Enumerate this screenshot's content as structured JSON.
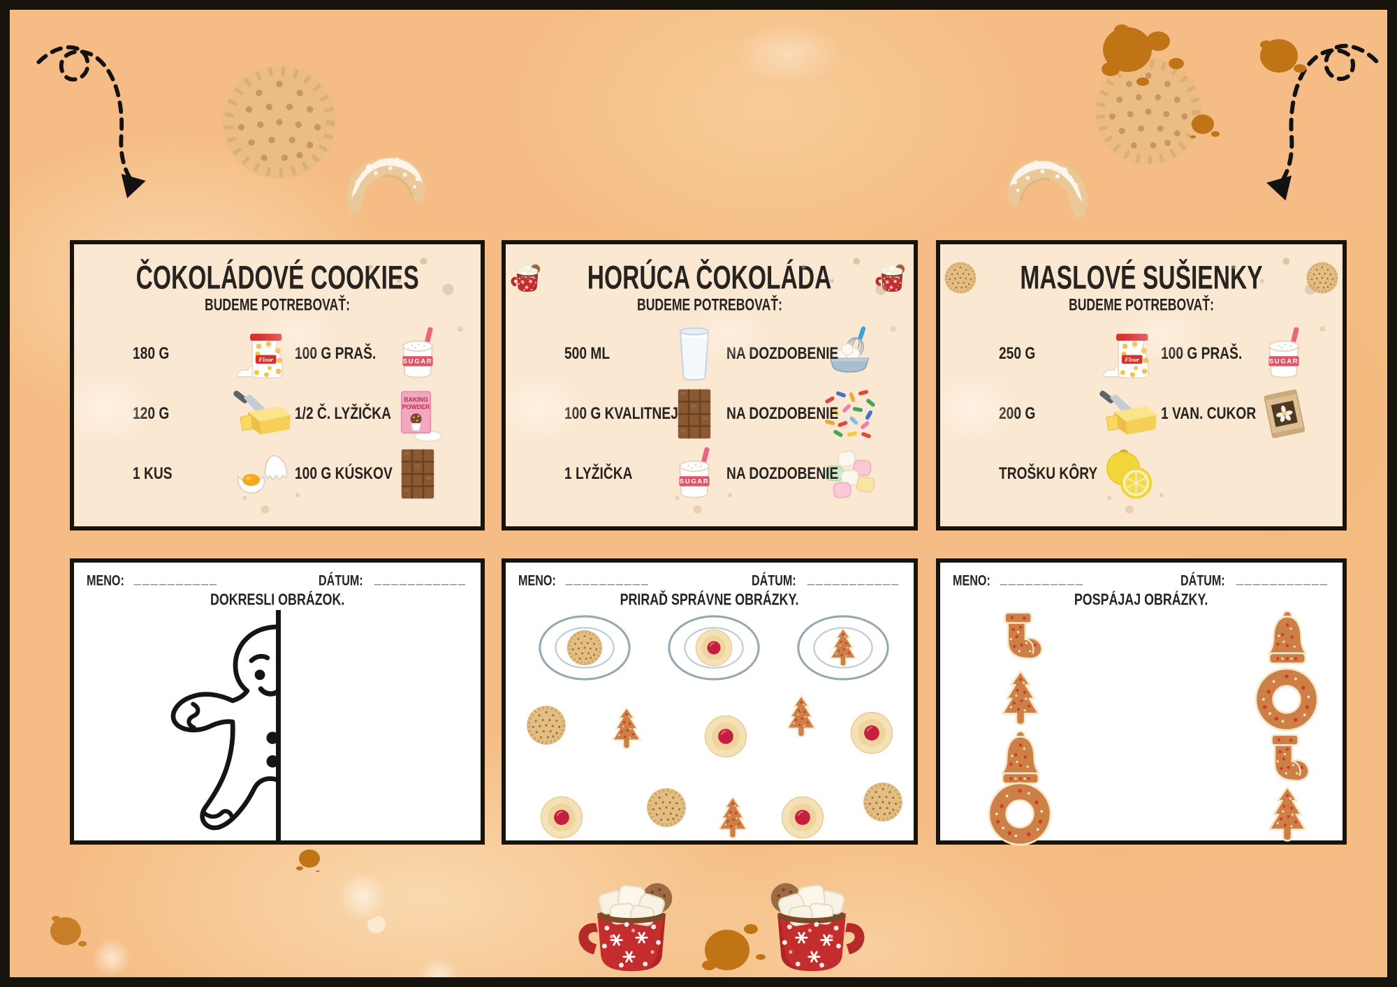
{
  "colors": {
    "page_background": "#f5bd85",
    "recipe_card_background": "#fbe8d2",
    "worksheet_background": "#ffffff",
    "border_ink": "#17140e",
    "text_ink": "#262320",
    "mug_red": "#c32d2d",
    "gingerbread_brown": "#cd8046",
    "icing_cream": "#f7e8cb",
    "jam_red": "#c41f3e",
    "splatter_orange": "#c07416"
  },
  "icon_labels": {
    "flour": "Flour",
    "sugar": "SUGAR",
    "baking1": "BAKING",
    "baking2": "POWDER"
  },
  "recipe_cards": [
    {
      "title": "ČOKOLÁDOVÉ COOKIES",
      "subtitle": "BUDEME POTREBOVAŤ:",
      "rows": [
        {
          "qty": "180 G",
          "icon": "flour-bag",
          "qty2": "100 G PRAŠ.",
          "icon2": "sugar-jar"
        },
        {
          "qty": "120 G",
          "icon": "butter-knife",
          "qty2": "1/2 Č. LYŽIČKA",
          "icon2": "baking-powder"
        },
        {
          "qty": "1 KUS",
          "icon": "cracked-egg",
          "qty2": "100 G KÚSKOV",
          "icon2": "chocolate-bar"
        }
      ]
    },
    {
      "title": "HORÚCA ČOKOLÁDA",
      "title_icon": "hot-chocolate-mug",
      "subtitle": "BUDEME POTREBOVAŤ:",
      "rows": [
        {
          "qty": "500 ML",
          "icon": "milk-glass",
          "qty2": "NA DOZDOBENIE",
          "icon2": "whipped-cream"
        },
        {
          "qty": "100 G KVALITNEJ",
          "icon": "chocolate-bar",
          "qty2": "NA DOZDOBENIE",
          "icon2": "sprinkles"
        },
        {
          "qty": "1 LYŽIČKA",
          "icon": "sugar-jar",
          "qty2": "NA DOZDOBENIE",
          "icon2": "marshmallows"
        }
      ]
    },
    {
      "title": "MASLOVÉ SUŠIENKY",
      "title_icon": "round-biscuit",
      "subtitle": "BUDEME POTREBOVAŤ:",
      "rows": [
        {
          "qty": "250 G",
          "icon": "flour-bag",
          "qty2": "100 G PRAŠ.",
          "icon2": "sugar-jar"
        },
        {
          "qty": "200 G",
          "icon": "butter-knife",
          "qty2": "1 VAN. CUKOR",
          "icon2": "vanilla-sugar"
        },
        {
          "qty": "TROŠKU KÔRY",
          "icon": "lemon",
          "qty2": "",
          "icon2": ""
        }
      ]
    }
  ],
  "worksheets": [
    {
      "name_label": "MENO:",
      "name_line": "__________",
      "date_label": "DÁTUM:",
      "date_line": "___________",
      "title": "DOKRESLI OBRÁZOK.",
      "activity": "draw-missing-half-of-gingerbread-man"
    },
    {
      "name_label": "MENO:",
      "name_line": "__________",
      "date_label": "DÁTUM:",
      "date_line": "___________",
      "title": "PRIRAĎ SPRÁVNE OBRÁZKY.",
      "plate_icon": "plate",
      "plates": [
        "round-biscuit",
        "linzer-cookie",
        "gingerbread-tree"
      ],
      "scatter": [
        "round-biscuit",
        "gingerbread-tree",
        "linzer-cookie",
        "gingerbread-tree",
        "linzer-cookie",
        "linzer-cookie",
        "round-biscuit",
        "gingerbread-tree",
        "linzer-cookie",
        "round-biscuit"
      ]
    },
    {
      "name_label": "MENO:",
      "name_line": "__________",
      "date_label": "DÁTUM:",
      "date_line": "___________",
      "title": "POSPÁJAJ OBRÁZKY.",
      "left_column": [
        "gingerbread-stocking",
        "gingerbread-tree",
        "gingerbread-bell",
        "gingerbread-wreath"
      ],
      "right_column": [
        "gingerbread-bell",
        "gingerbread-wreath",
        "gingerbread-stocking",
        "gingerbread-tree"
      ]
    }
  ],
  "decorations": {
    "arrow_icon": "dashed-arrow",
    "biscuit_icon": "round-biscuit",
    "crescent_icon": "crescent-cookie",
    "mug_icon": "hot-chocolate-mug"
  }
}
